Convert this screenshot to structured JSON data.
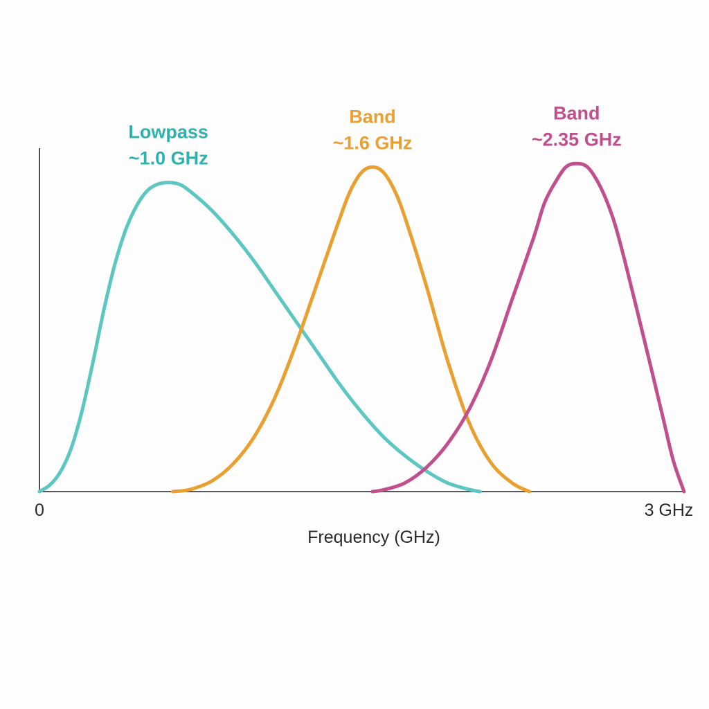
{
  "chart_data": {
    "type": "line",
    "title": "",
    "xlabel": "Frequency (GHz)",
    "ylabel": "",
    "xlim": [
      0,
      3
    ],
    "ylim": [
      0,
      1.0
    ],
    "x_tick_labels": [
      {
        "value": 0,
        "label": "0"
      },
      {
        "value": 3,
        "label": "3 GHz"
      }
    ],
    "grid": false,
    "legend": "none",
    "series": [
      {
        "label_lines": [
          "Lowpass",
          "~1.0 GHz"
        ],
        "color": "#5cc6c0",
        "label_color": "#2fb2ad",
        "points": [
          [
            0.0,
            0.0
          ],
          [
            0.05,
            0.02
          ],
          [
            0.1,
            0.06
          ],
          [
            0.15,
            0.13
          ],
          [
            0.2,
            0.24
          ],
          [
            0.25,
            0.38
          ],
          [
            0.3,
            0.53
          ],
          [
            0.35,
            0.66
          ],
          [
            0.4,
            0.76
          ],
          [
            0.45,
            0.83
          ],
          [
            0.5,
            0.875
          ],
          [
            0.55,
            0.895
          ],
          [
            0.6,
            0.9
          ],
          [
            0.65,
            0.895
          ],
          [
            0.7,
            0.875
          ],
          [
            0.8,
            0.82
          ],
          [
            0.9,
            0.75
          ],
          [
            1.0,
            0.67
          ],
          [
            1.1,
            0.58
          ],
          [
            1.2,
            0.49
          ],
          [
            1.3,
            0.4
          ],
          [
            1.4,
            0.31
          ],
          [
            1.5,
            0.23
          ],
          [
            1.6,
            0.16
          ],
          [
            1.7,
            0.105
          ],
          [
            1.8,
            0.06
          ],
          [
            1.9,
            0.025
          ],
          [
            2.0,
            0.006
          ],
          [
            2.05,
            0.0
          ]
        ]
      },
      {
        "label_lines": [
          "Band",
          "~1.6 GHz"
        ],
        "color": "#e9a030",
        "label_color": "#e9a030",
        "points": [
          [
            0.62,
            0.0
          ],
          [
            0.7,
            0.006
          ],
          [
            0.8,
            0.03
          ],
          [
            0.9,
            0.08
          ],
          [
            1.0,
            0.16
          ],
          [
            1.1,
            0.28
          ],
          [
            1.2,
            0.44
          ],
          [
            1.3,
            0.62
          ],
          [
            1.4,
            0.8
          ],
          [
            1.45,
            0.88
          ],
          [
            1.5,
            0.93
          ],
          [
            1.55,
            0.945
          ],
          [
            1.6,
            0.93
          ],
          [
            1.65,
            0.88
          ],
          [
            1.7,
            0.8
          ],
          [
            1.8,
            0.6
          ],
          [
            1.9,
            0.38
          ],
          [
            2.0,
            0.2
          ],
          [
            2.1,
            0.085
          ],
          [
            2.2,
            0.025
          ],
          [
            2.28,
            0.0
          ]
        ]
      },
      {
        "label_lines": [
          "Band",
          "~2.35 GHz"
        ],
        "color": "#c24f8d",
        "label_color": "#c24f8d",
        "points": [
          [
            1.55,
            0.0
          ],
          [
            1.6,
            0.005
          ],
          [
            1.7,
            0.025
          ],
          [
            1.8,
            0.07
          ],
          [
            1.9,
            0.14
          ],
          [
            2.0,
            0.24
          ],
          [
            2.1,
            0.38
          ],
          [
            2.2,
            0.56
          ],
          [
            2.3,
            0.74
          ],
          [
            2.35,
            0.84
          ],
          [
            2.4,
            0.9
          ],
          [
            2.45,
            0.945
          ],
          [
            2.5,
            0.955
          ],
          [
            2.55,
            0.945
          ],
          [
            2.6,
            0.9
          ],
          [
            2.65,
            0.83
          ],
          [
            2.7,
            0.73
          ],
          [
            2.8,
            0.48
          ],
          [
            2.9,
            0.22
          ],
          [
            2.95,
            0.09
          ],
          [
            3.0,
            0.0
          ]
        ]
      }
    ]
  }
}
